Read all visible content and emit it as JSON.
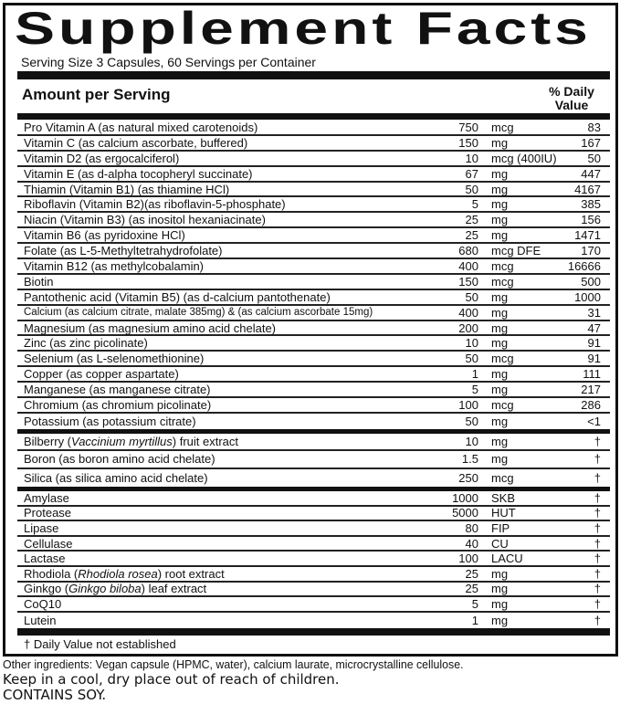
{
  "title": "Supplement Facts",
  "serving_size": "Serving Size  3 Capsules, 60 Servings per Container",
  "amount_header": "Amount per Serving",
  "dv_header_1": "% Daily",
  "dv_header_2": "Value",
  "groups": [
    [
      {
        "name": "Pro Vitamin A (as natural mixed carotenoids)",
        "qty": "750",
        "unit": "mcg",
        "dv": "83"
      },
      {
        "name": "Vitamin C (as calcium ascorbate, buffered)",
        "qty": "150",
        "unit": "mg",
        "dv": "167"
      },
      {
        "name": "Vitamin D2 (as ergocalciferol)",
        "qty": "10",
        "unit": "mcg (400IU)",
        "dv": "50"
      },
      {
        "name": "Vitamin E (as d-alpha tocopheryl succinate)",
        "qty": "67",
        "unit": "mg",
        "dv": "447"
      },
      {
        "name": "Thiamin (Vitamin B1) (as thiamine HCl)",
        "qty": "50",
        "unit": "mg",
        "dv": "4167"
      },
      {
        "name": "Riboflavin (Vitamin B2)(as riboflavin-5-phosphate)",
        "qty": "5",
        "unit": "mg",
        "dv": "385"
      },
      {
        "name": "Niacin (Vitamin B3) (as inositol hexaniacinate)",
        "qty": "25",
        "unit": "mg",
        "dv": "156"
      },
      {
        "name": "Vitamin B6 (as pyridoxine HCl)",
        "qty": "25",
        "unit": "mg",
        "dv": "1471"
      },
      {
        "name": "Folate (as L-5-Methyltetrahydrofolate)",
        "qty": "680",
        "unit": "mcg DFE",
        "dv": "170"
      },
      {
        "name": "Vitamin B12 (as methylcobalamin)",
        "qty": "400",
        "unit": "mcg",
        "dv": "16666"
      },
      {
        "name": "Biotin",
        "qty": "150",
        "unit": "mcg",
        "dv": "500"
      },
      {
        "name": "Pantothenic acid (Vitamin B5) (as d-calcium pantothenate)",
        "qty": "50",
        "unit": "mg",
        "dv": "1000"
      },
      {
        "name": "Calcium (as calcium citrate, malate 385mg) & (as calcium ascorbate 15mg)",
        "qty": "400",
        "unit": "mg",
        "dv": "31",
        "small": true
      },
      {
        "name": "Magnesium (as magnesium amino acid chelate)",
        "qty": "200",
        "unit": "mg",
        "dv": "47"
      },
      {
        "name": "Zinc (as zinc picolinate)",
        "qty": "10",
        "unit": "mg",
        "dv": "91"
      },
      {
        "name": "Selenium (as L-selenomethionine)",
        "qty": "50",
        "unit": "mcg",
        "dv": "91"
      },
      {
        "name": "Copper (as copper aspartate)",
        "qty": "1",
        "unit": "mg",
        "dv": "111"
      },
      {
        "name": "Manganese (as manganese citrate)",
        "qty": "5",
        "unit": "mg",
        "dv": "217"
      },
      {
        "name": "Chromium (as chromium picolinate)",
        "qty": "100",
        "unit": "mcg",
        "dv": "286"
      },
      {
        "name": "Potassium (as potassium citrate)",
        "qty": "50",
        "unit": "mg",
        "dv": "<1"
      }
    ],
    [
      {
        "name": "Bilberry (<i>Vaccinium myrtillus</i>) fruit extract",
        "qty": "10",
        "unit": "mg",
        "dv": "†",
        "html": true
      },
      {
        "name": "Boron (as boron amino acid chelate)",
        "qty": "1.5",
        "unit": "mg",
        "dv": "†"
      },
      {
        "name": "Silica (as silica amino acid chelate)",
        "qty": "250",
        "unit": "mcg",
        "dv": "†"
      }
    ],
    [
      {
        "name": "Amylase",
        "qty": "1000",
        "unit": "SKB",
        "dv": "†"
      },
      {
        "name": "Protease",
        "qty": "5000",
        "unit": "HUT",
        "dv": "†"
      },
      {
        "name": "Lipase",
        "qty": "80",
        "unit": "FIP",
        "dv": "†"
      },
      {
        "name": "Cellulase",
        "qty": "40",
        "unit": "CU",
        "dv": "†"
      },
      {
        "name": "Lactase",
        "qty": "100",
        "unit": "LACU",
        "dv": "†"
      },
      {
        "name": "Rhodiola (<i>Rhodiola rosea</i>) root extract",
        "qty": "25",
        "unit": "mg",
        "dv": "†",
        "html": true
      },
      {
        "name": "Ginkgo (<i>Ginkgo biloba</i>) leaf extract",
        "qty": "25",
        "unit": "mg",
        "dv": "†",
        "html": true
      },
      {
        "name": "CoQ10",
        "qty": "5",
        "unit": "mg",
        "dv": "†"
      },
      {
        "name": "Lutein",
        "qty": "1",
        "unit": "mg",
        "dv": "†"
      }
    ]
  ],
  "footnote": "†  Daily Value not established",
  "other_ingredients": "Other ingredients: Vegan capsule (HPMC, water), calcium laurate, microcrystalline cellulose.",
  "storage": "Keep in a cool, dry place out of reach of children.",
  "allergen": "CONTAINS SOY."
}
